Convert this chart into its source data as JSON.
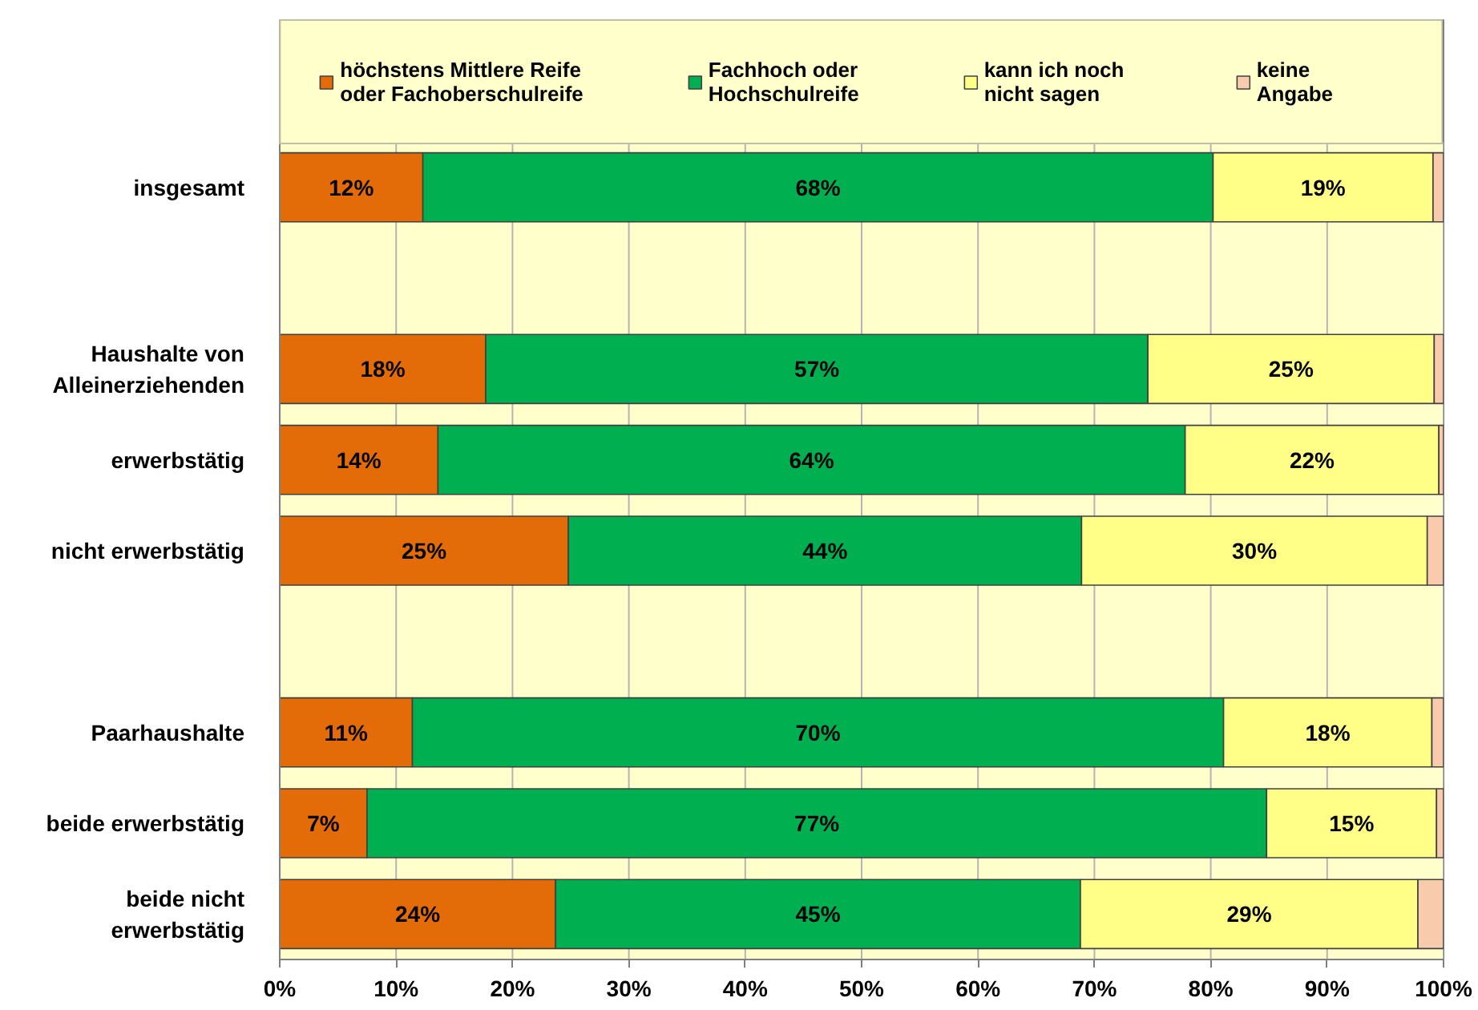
{
  "chart_data": {
    "type": "bar",
    "orientation": "horizontal",
    "stacked": true,
    "categories": [
      "insgesamt",
      null,
      "Haushalte von Alleinerziehenden",
      "erwerbstätig",
      "nicht erwerbstätig",
      null,
      "Paarhaushalte",
      "beide erwerbstätig",
      "beide nicht erwerbstätig"
    ],
    "series": [
      {
        "name": "höchstens Mittlere Reife oder Fachoberschulreife",
        "color": "#e36c09",
        "values": [
          12.3,
          null,
          17.7,
          13.6,
          24.8,
          null,
          11.4,
          7.5,
          23.7
        ],
        "value_labels": [
          "12%",
          null,
          "18%",
          "14%",
          "25%",
          null,
          "11%",
          "7%",
          "24%"
        ]
      },
      {
        "name": "Fachhoch oder Hochschulreife",
        "color": "#00b050",
        "values": [
          67.9,
          null,
          56.9,
          64.2,
          44.1,
          null,
          69.7,
          77.3,
          45.1
        ],
        "value_labels": [
          "68%",
          null,
          "57%",
          "64%",
          "44%",
          null,
          "70%",
          "77%",
          "45%"
        ]
      },
      {
        "name": "kann ich noch nicht sagen",
        "color": "#ffff88",
        "values": [
          18.9,
          null,
          24.6,
          21.8,
          29.7,
          null,
          17.9,
          14.6,
          29.0
        ],
        "value_labels": [
          "19%",
          null,
          "25%",
          "22%",
          "30%",
          null,
          "18%",
          "15%",
          "29%"
        ]
      },
      {
        "name": "keine Angabe",
        "color": "#f8cbad",
        "values": [
          0.9,
          null,
          0.8,
          0.4,
          1.4,
          null,
          1.0,
          0.6,
          2.2
        ]
      }
    ],
    "xlim": [
      0,
      100
    ],
    "xticks": [
      {
        "value": 0,
        "label": "0%"
      },
      {
        "value": 10,
        "label": "10%"
      },
      {
        "value": 20,
        "label": "20%"
      },
      {
        "value": 30,
        "label": "30%"
      },
      {
        "value": 40,
        "label": "40%"
      },
      {
        "value": 50,
        "label": "50%"
      },
      {
        "value": 60,
        "label": "60%"
      },
      {
        "value": 70,
        "label": "70%"
      },
      {
        "value": 80,
        "label": "80%"
      },
      {
        "value": 90,
        "label": "90%"
      },
      {
        "value": 100,
        "label": "100%"
      }
    ],
    "grid": "x",
    "legend": "top"
  }
}
